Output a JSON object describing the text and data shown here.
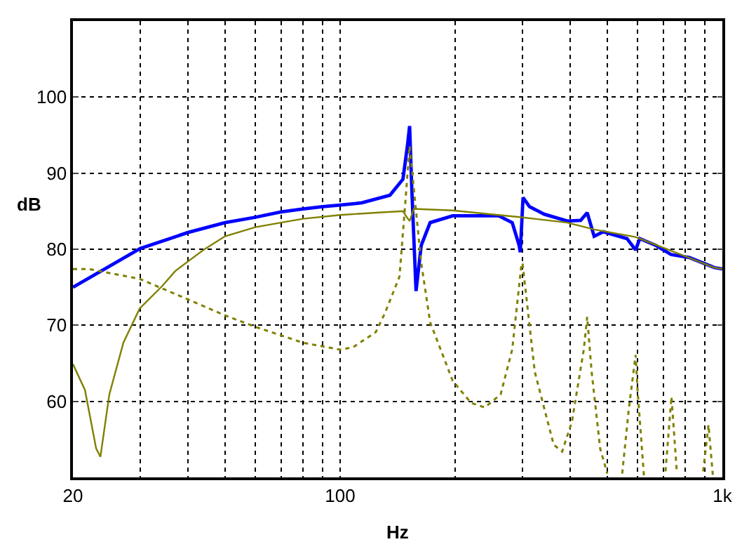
{
  "chart_data": {
    "type": "line",
    "xlabel": "Hz",
    "ylabel": "dB",
    "log": "x",
    "grid": true,
    "xlim": [
      20,
      1000
    ],
    "ylim": [
      50,
      110
    ],
    "xticks": [
      20,
      {
        "value": 30,
        "label": null
      },
      {
        "value": 40,
        "label": null
      },
      {
        "value": 50,
        "label": null
      },
      {
        "value": 60,
        "label": null
      },
      {
        "value": 70,
        "label": null
      },
      {
        "value": 80,
        "label": null
      },
      {
        "value": 90,
        "label": null
      },
      100,
      {
        "value": 200,
        "label": null
      },
      {
        "value": 300,
        "label": null
      },
      {
        "value": 400,
        "label": null
      },
      {
        "value": 500,
        "label": null
      },
      {
        "value": 600,
        "label": null
      },
      {
        "value": 700,
        "label": null
      },
      {
        "value": 800,
        "label": null
      },
      {
        "value": 900,
        "label": null
      },
      {
        "value": 1000,
        "label": "1k"
      }
    ],
    "yticks": [
      60,
      70,
      80,
      90,
      100
    ],
    "series": [
      {
        "color": "#0000ff",
        "line_style": "solid",
        "x": [
          20,
          30,
          40,
          50,
          60,
          70,
          80,
          90,
          100,
          114,
          135,
          146,
          150,
          152,
          154,
          158,
          163,
          172,
          197,
          260,
          282,
          294,
          296,
          301,
          313,
          342,
          393,
          426,
          443,
          462,
          488,
          563,
          593,
          608,
          670,
          734,
          820,
          951,
          1000
        ],
        "values": [
          75.0,
          80.1,
          82.2,
          83.5,
          84.2,
          84.9,
          85.3,
          85.6,
          85.8,
          86.1,
          87.1,
          89.2,
          93.6,
          96.2,
          88.0,
          74.5,
          80.5,
          83.5,
          84.4,
          84.4,
          83.5,
          80.5,
          79.6,
          86.8,
          85.6,
          84.6,
          83.7,
          83.8,
          84.8,
          81.7,
          82.3,
          81.4,
          79.9,
          81.4,
          80.5,
          79.3,
          78.9,
          77.6,
          77.4
        ]
      },
      {
        "color": "#808000",
        "line_style": "solid",
        "x": [
          20,
          21.5,
          23,
          23.6,
          24.9,
          27.1,
          29.9,
          34.3,
          37,
          40,
          43.9,
          50,
          60,
          70,
          80,
          100,
          124,
          146,
          150,
          152,
          156,
          197,
          298,
          393,
          462,
          593,
          734,
          951,
          1000
        ],
        "values": [
          64.9,
          61.5,
          53.8,
          52.7,
          60.9,
          67.7,
          72.2,
          75.2,
          77.1,
          78.4,
          79.9,
          81.7,
          82.9,
          83.5,
          84.0,
          84.5,
          84.8,
          85.0,
          84.1,
          83.7,
          85.3,
          85.1,
          84.2,
          83.5,
          82.6,
          81.6,
          79.8,
          77.6,
          77.4
        ]
      },
      {
        "color": "#808000",
        "line_style": "dotted",
        "x": [
          20,
          22,
          29.9,
          40,
          50,
          60,
          80,
          100,
          108,
          124,
          131,
          143,
          148,
          152,
          158,
          163,
          172,
          197,
          220,
          239,
          263,
          282,
          298,
          300,
          323,
          362,
          381,
          404,
          434,
          443,
          455,
          479,
          500,
          510,
          547,
          569,
          593,
          600,
          624,
          630,
          700,
          710,
          736,
          760,
          770,
          880,
          891,
          920,
          945
        ],
        "values": [
          77.4,
          77.4,
          76.1,
          73.4,
          71.3,
          69.8,
          67.7,
          66.8,
          67.1,
          69.1,
          71.6,
          76.4,
          85.9,
          93.6,
          85.0,
          78.2,
          70.4,
          62.7,
          59.8,
          59.2,
          60.9,
          66.8,
          77.9,
          78.2,
          63.9,
          54.3,
          53.4,
          57.3,
          66.8,
          71.1,
          63.9,
          53.8,
          50.5,
          null,
          50.5,
          58.9,
          66.1,
          61.5,
          50.0,
          null,
          null,
          50.8,
          60.6,
          50.8,
          null,
          null,
          50.8,
          56.9,
          50.1
        ]
      }
    ]
  }
}
